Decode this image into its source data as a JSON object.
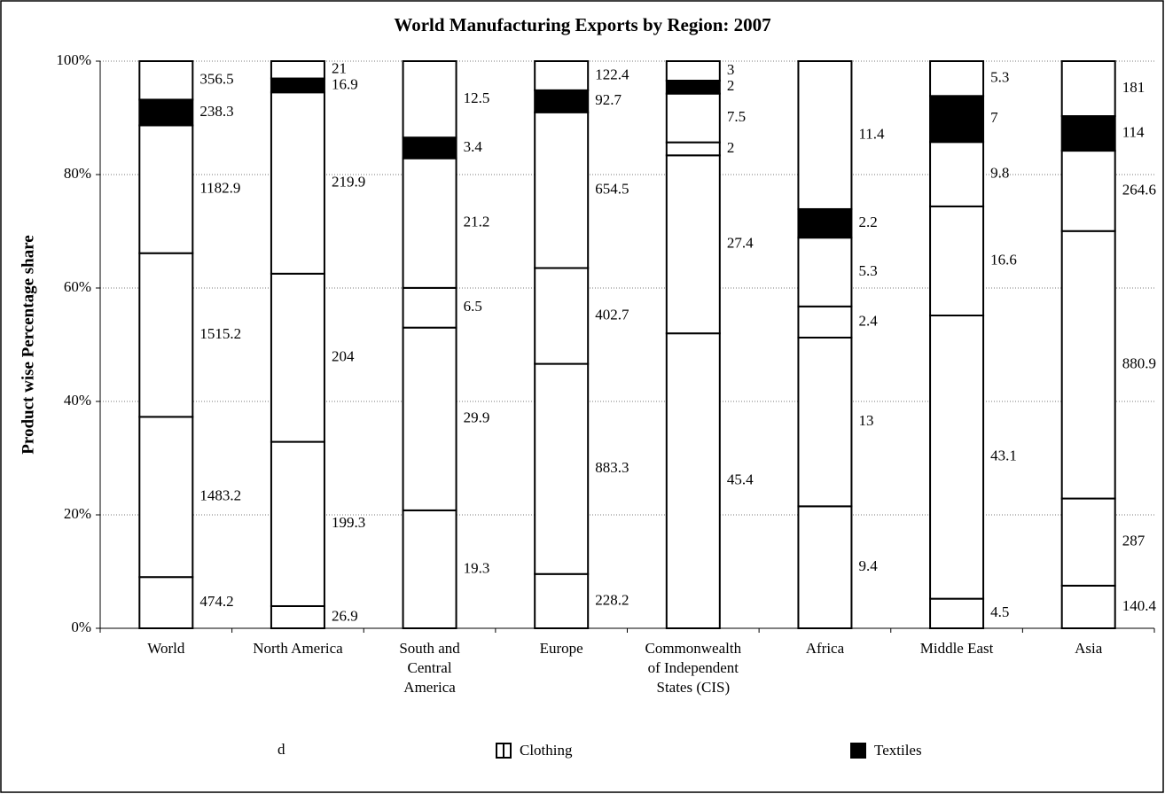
{
  "chart_data": {
    "type": "bar",
    "stacking": "percent",
    "title": "World Manufacturing Exports by Region: 2007",
    "y_label": "Product wise Percentage share",
    "categories": [
      "World",
      "North America",
      "South and Central America",
      "Europe",
      "Commonwealth of Independent States (CIS)",
      "Africa",
      "Middle East",
      "Asia"
    ],
    "series": [
      {
        "name": null,
        "color": "#ffffff",
        "values": [
          474.2,
          26.9,
          19.3,
          228.2,
          45.4,
          9.4,
          4.5,
          140.4
        ]
      },
      {
        "name": null,
        "color": "#ffffff",
        "values": [
          1483.2,
          199.3,
          29.9,
          883.3,
          27.4,
          13,
          43.1,
          287
        ]
      },
      {
        "name": null,
        "color": "#ffffff",
        "values": [
          1515.2,
          204,
          6.5,
          402.7,
          2,
          2.4,
          16.6,
          880.9
        ]
      },
      {
        "name": null,
        "color": "#ffffff",
        "values": [
          1182.9,
          219.9,
          21.2,
          654.5,
          7.5,
          5.3,
          9.8,
          264.6
        ]
      },
      {
        "name": "Textiles",
        "color": "#000000",
        "values": [
          238.3,
          16.9,
          3.4,
          92.7,
          2,
          2.2,
          7,
          114
        ]
      },
      {
        "name": "Clothing",
        "color": "#ffffff",
        "values": [
          356.5,
          21,
          12.5,
          122.4,
          3,
          11.4,
          5.3,
          181
        ]
      }
    ],
    "legend_extra": "d",
    "ylim": [
      0,
      100
    ],
    "yticks": [
      {
        "value": 0,
        "label": "0%"
      },
      {
        "value": 20,
        "label": "20%"
      },
      {
        "value": 40,
        "label": "40%"
      },
      {
        "value": 60,
        "label": "60%"
      },
      {
        "value": 80,
        "label": "80%"
      },
      {
        "value": 100,
        "label": "100%"
      }
    ],
    "grid": true
  }
}
